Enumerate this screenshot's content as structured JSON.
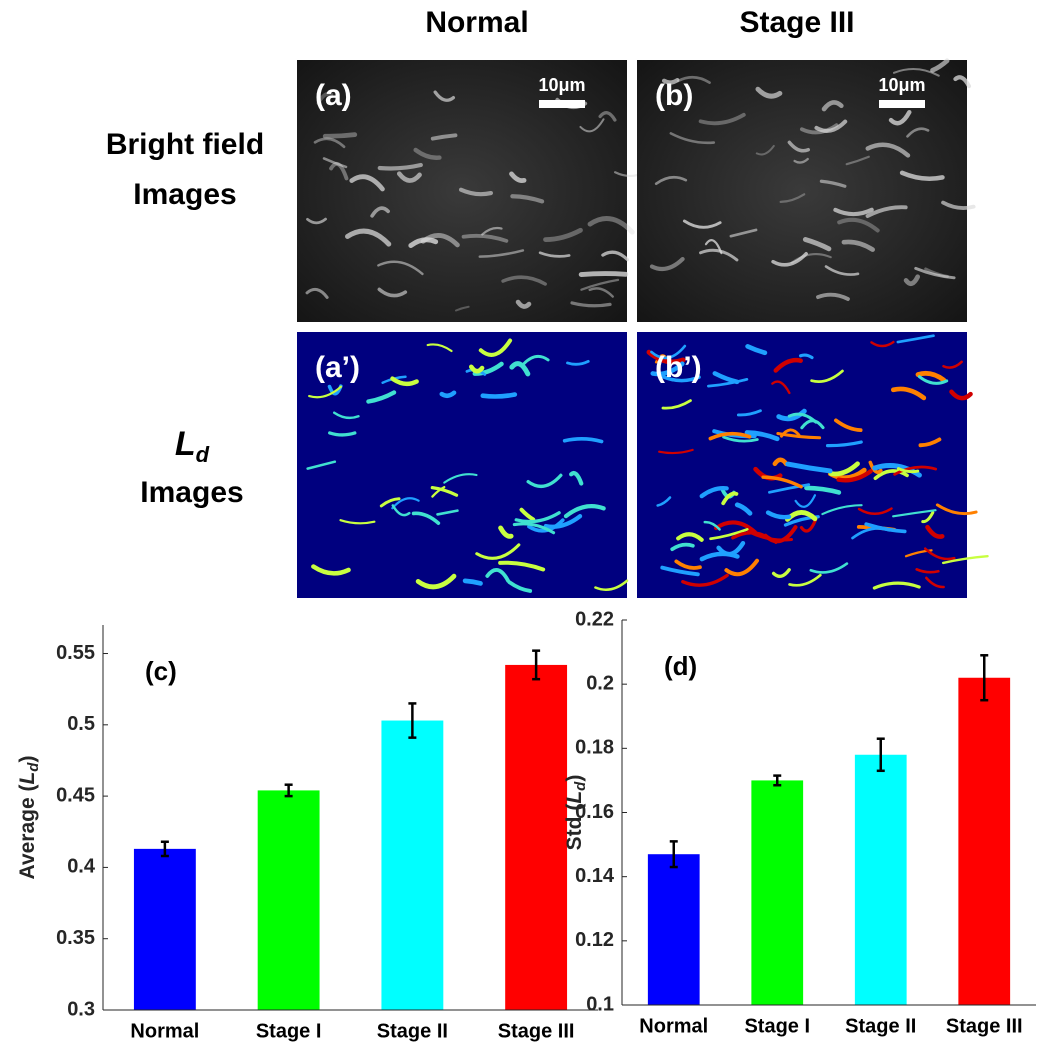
{
  "figure": {
    "columns": [
      "Normal",
      "Stage III"
    ],
    "rows": [
      {
        "lines": [
          "Bright field",
          "Images"
        ]
      },
      {
        "symbol": "L",
        "subscript": "d",
        "text": "Images"
      }
    ],
    "panels": [
      {
        "label": "(a)",
        "scale": "10μm"
      },
      {
        "label": "(b)",
        "scale": "10μm"
      },
      {
        "label": "(a’)"
      },
      {
        "label": "(b’)"
      }
    ]
  },
  "chart_data": [
    {
      "type": "bar",
      "annotation": "(c)",
      "ylabel": [
        "Average (",
        "L",
        "d",
        ")"
      ],
      "categories": [
        "Normal",
        "Stage I",
        "Stage II",
        "Stage III"
      ],
      "values": [
        0.413,
        0.454,
        0.503,
        0.542
      ],
      "errors": [
        0.005,
        0.004,
        0.012,
        0.01
      ],
      "colors": [
        "#0000ff",
        "#00ff00",
        "#00ffff",
        "#ff0000"
      ],
      "ylim": [
        0.3,
        0.57
      ],
      "yticks": [
        0.3,
        0.35,
        0.4,
        0.45,
        0.5,
        0.55
      ]
    },
    {
      "type": "bar",
      "annotation": "(d)",
      "ylabel": [
        "Std (",
        "L",
        "d",
        ")"
      ],
      "categories": [
        "Normal",
        "Stage I",
        "Stage II",
        "Stage III"
      ],
      "values": [
        0.147,
        0.17,
        0.178,
        0.202
      ],
      "errors": [
        0.004,
        0.0015,
        0.005,
        0.007
      ],
      "colors": [
        "#0000ff",
        "#00ff00",
        "#00ffff",
        "#ff0000"
      ],
      "ylim": [
        0.1,
        0.22
      ],
      "yticks": [
        0.1,
        0.12,
        0.14,
        0.16,
        0.18,
        0.2,
        0.22
      ]
    }
  ]
}
